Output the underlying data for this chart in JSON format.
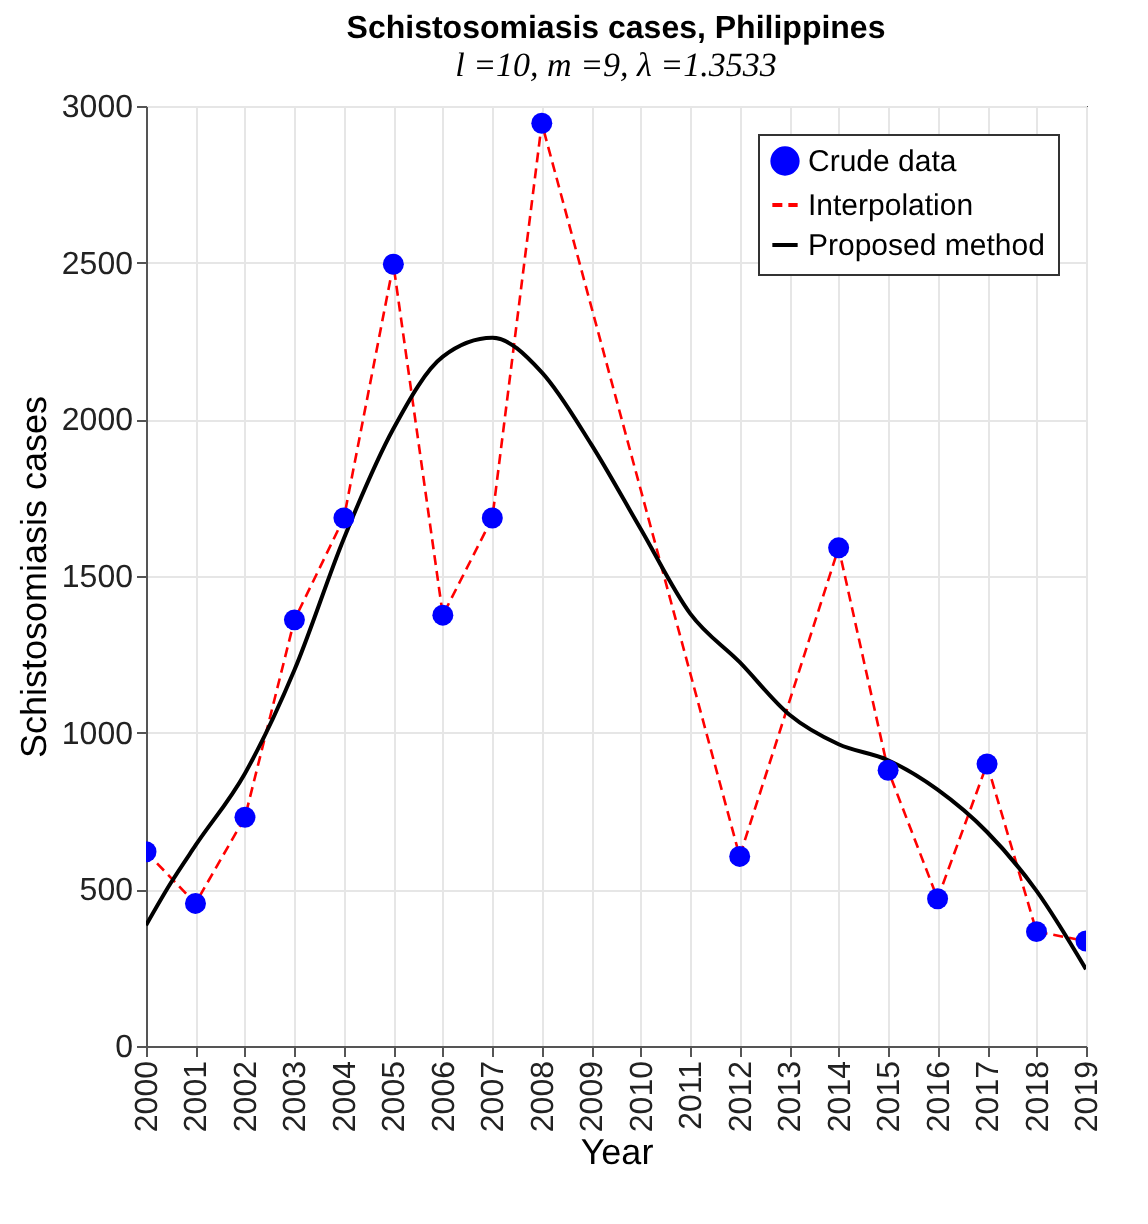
{
  "chart_data": {
    "type": "line",
    "title": "Schistosomiasis cases, Philippines",
    "subtitle": "l =10, m =9, λ =1.3533",
    "xlabel": "Year",
    "ylabel": "Schistosomiasis cases",
    "xlim": [
      2000,
      2019
    ],
    "xticks": [
      2000,
      2001,
      2002,
      2003,
      2004,
      2005,
      2006,
      2007,
      2008,
      2009,
      2010,
      2011,
      2012,
      2013,
      2014,
      2015,
      2016,
      2017,
      2018,
      2019
    ],
    "ylim": [
      0,
      3000
    ],
    "yticks": [
      0,
      500,
      1000,
      1500,
      2000,
      2500,
      3000
    ],
    "grid": true,
    "legend": "top right",
    "series": [
      {
        "name": "Crude data",
        "type": "scatter",
        "marker": "circle",
        "color": "#0000ff",
        "x": [
          2000,
          2001,
          2002,
          2003,
          2004,
          2005,
          2006,
          2007,
          2008,
          2012,
          2014,
          2015,
          2016,
          2017,
          2018,
          2019
        ],
        "values": [
          620,
          455,
          730,
          1360,
          1685,
          2495,
          1375,
          1685,
          2945,
          605,
          1590,
          880,
          470,
          900,
          365,
          335
        ]
      },
      {
        "name": "Interpolation",
        "type": "line",
        "line_style": "dashed",
        "color": "#ff0000",
        "x": [
          2000,
          2001,
          2002,
          2003,
          2004,
          2005,
          2006,
          2007,
          2008,
          2012,
          2014,
          2015,
          2016,
          2017,
          2018,
          2019
        ],
        "values": [
          620,
          455,
          730,
          1360,
          1685,
          2495,
          1375,
          1685,
          2945,
          605,
          1590,
          880,
          470,
          900,
          365,
          335
        ]
      },
      {
        "name": "Proposed method",
        "type": "line",
        "line_style": "solid",
        "color": "#000000",
        "x": [
          2000,
          2000.5,
          2001,
          2002,
          2003,
          2004,
          2005,
          2006,
          2007,
          2008,
          2009,
          2010,
          2011,
          2012,
          2013,
          2014,
          2015,
          2016,
          2017,
          2018,
          2019
        ],
        "values": [
          385,
          520,
          640,
          870,
          1200,
          1620,
          1970,
          2200,
          2260,
          2150,
          1920,
          1650,
          1380,
          1225,
          1058,
          963,
          912,
          818,
          683,
          495,
          245
        ]
      }
    ]
  }
}
